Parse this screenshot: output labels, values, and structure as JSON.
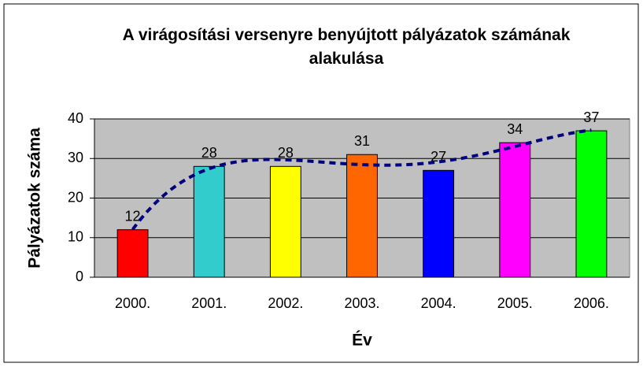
{
  "chart_data": {
    "type": "bar",
    "title": "A virágosítási versenyre benyújtott pályázatok számának alakulása",
    "x_label": "Év",
    "y_label": "Pályázatok száma",
    "categories": [
      "2000.",
      "2001.",
      "2002.",
      "2003.",
      "2004.",
      "2005.",
      "2006."
    ],
    "values": [
      12,
      28,
      28,
      31,
      27,
      34,
      37
    ],
    "colors": [
      "#ff0000",
      "#33cccc",
      "#ffff00",
      "#ff6600",
      "#0000ff",
      "#ff00ff",
      "#00ff00"
    ],
    "ylim": [
      0,
      40
    ],
    "yticks": [
      0,
      10,
      20,
      30,
      40
    ],
    "grid": true,
    "plot_background": "#c0c0c0",
    "trendline": {
      "type": "polynomial",
      "order": 4,
      "color": "#000080"
    }
  }
}
